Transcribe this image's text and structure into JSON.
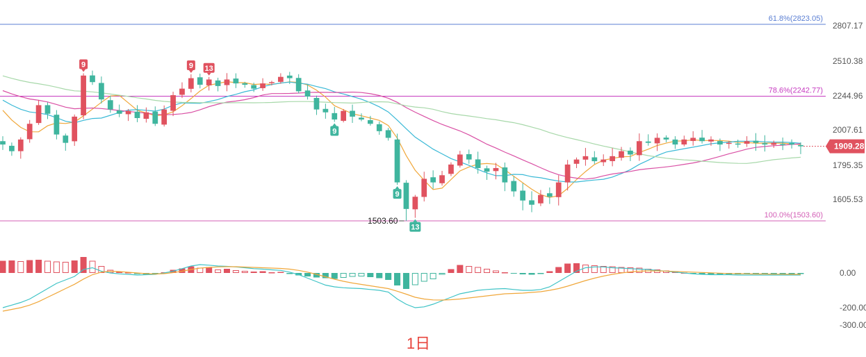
{
  "chart_data": {
    "type": "candlestick",
    "period_label": "1日",
    "colors": {
      "up": "#e0525f",
      "down": "#3fb59e",
      "ma_yellow": "#f0a73a",
      "ma_pink": "#d94fa4",
      "ma_blue": "#3ab9d6",
      "ma_green": "#a7d8a9",
      "fib_618": "#5b7fd3",
      "fib_786": "#c63bc0",
      "fib_100": "#d35fb6",
      "dif": "#3ec3c6",
      "dea": "#f0a73a"
    },
    "price_axis": {
      "ticks": [
        2807.17,
        2510.38,
        2244.96,
        2007.61,
        1795.35,
        1605.53
      ],
      "tick_labels": [
        "2807.17",
        "2510.38",
        "2244.96",
        "2007.61",
        "1795.35",
        "1605.53"
      ]
    },
    "fib_levels": [
      {
        "label": "61.8%(2823.05)",
        "value": 2823.05
      },
      {
        "label": "78.6%(2242.77)",
        "value": 2242.77
      },
      {
        "label": "100.0%(1503.60)",
        "value": 1503.6
      }
    ],
    "current_price": {
      "label": "1909.28",
      "value": 1909.28
    },
    "low_annotation": {
      "label": "1503.60",
      "value": 1503.6
    },
    "td_markers": [
      {
        "label": "9",
        "index": 9,
        "position": "above",
        "color": "#e0525f"
      },
      {
        "label": "9",
        "index": 21,
        "position": "above",
        "color": "#e0525f"
      },
      {
        "label": "13",
        "index": 23,
        "position": "above",
        "color": "#e0525f"
      },
      {
        "label": "9",
        "index": 37,
        "position": "below",
        "color": "#3fb59e"
      },
      {
        "label": "9",
        "index": 44,
        "position": "below",
        "color": "#3fb59e"
      },
      {
        "label": "13",
        "index": 46,
        "position": "below",
        "color": "#3fb59e"
      }
    ],
    "macd_axis": {
      "ticks": [
        0,
        -200,
        -300
      ],
      "tick_labels": [
        "0.00",
        "-200.00",
        "-300.00"
      ]
    },
    "closes": [
      1920,
      1880,
      1950,
      2050,
      2180,
      2120,
      1980,
      1930,
      2100,
      2400,
      2350,
      2220,
      2150,
      2120,
      2140,
      2090,
      2130,
      2050,
      2150,
      2250,
      2300,
      2380,
      2330,
      2370,
      2320,
      2370,
      2340,
      2330,
      2300,
      2340,
      2350,
      2390,
      2380,
      2280,
      2240,
      2150,
      2130,
      2080,
      2140,
      2100,
      2080,
      2050,
      2000,
      1960,
      1700,
      1560,
      1620,
      1720,
      1700,
      1740,
      1800,
      1860,
      1830,
      1780,
      1760,
      1780,
      1700,
      1650,
      1600,
      1580,
      1630,
      1620,
      1700,
      1800,
      1830,
      1850,
      1820,
      1830,
      1850,
      1880,
      1860,
      1940,
      1930,
      1960,
      1950,
      1920,
      1950,
      1960,
      1940,
      1950,
      1920,
      1930,
      1920,
      1940,
      1930,
      1920,
      1930,
      1920,
      1920,
      1909.28
    ],
    "macd_hist": [
      70,
      72,
      68,
      74,
      76,
      70,
      66,
      64,
      72,
      92,
      70,
      40,
      18,
      8,
      4,
      -6,
      -8,
      -6,
      4,
      18,
      26,
      38,
      30,
      34,
      20,
      24,
      16,
      12,
      8,
      10,
      4,
      6,
      -4,
      -14,
      -20,
      -26,
      -30,
      -34,
      -28,
      -22,
      -20,
      -24,
      -30,
      -40,
      -72,
      -92,
      -70,
      -50,
      -36,
      -10,
      22,
      46,
      40,
      34,
      24,
      14,
      4,
      -4,
      -8,
      -10,
      -4,
      10,
      34,
      54,
      56,
      48,
      44,
      40,
      38,
      34,
      32,
      30,
      24,
      20,
      14,
      6,
      2,
      -4,
      -6,
      -8,
      -10,
      -8,
      -8,
      -6,
      -6,
      -6,
      -6,
      -6,
      -6,
      -4
    ],
    "macd_dif": [
      -200,
      -185,
      -170,
      -150,
      -120,
      -90,
      -60,
      -40,
      -20,
      20,
      30,
      10,
      0,
      -5,
      -8,
      -12,
      -10,
      -8,
      0,
      10,
      25,
      40,
      48,
      45,
      40,
      38,
      35,
      30,
      25,
      22,
      18,
      15,
      5,
      -10,
      -30,
      -50,
      -70,
      -80,
      -85,
      -88,
      -90,
      -95,
      -100,
      -110,
      -150,
      -180,
      -200,
      -195,
      -180,
      -160,
      -140,
      -120,
      -110,
      -100,
      -95,
      -92,
      -90,
      -95,
      -100,
      -100,
      -95,
      -80,
      -50,
      -20,
      10,
      30,
      35,
      35,
      30,
      28,
      25,
      22,
      20,
      15,
      10,
      5,
      0,
      -5,
      -8,
      -10,
      -10,
      -10,
      -12,
      -12,
      -12,
      -12,
      -12,
      -12,
      -12,
      -12
    ],
    "macd_dea": [
      -220,
      -210,
      -200,
      -185,
      -165,
      -140,
      -115,
      -90,
      -65,
      -35,
      -10,
      5,
      10,
      8,
      4,
      0,
      -4,
      -6,
      -4,
      2,
      10,
      20,
      28,
      32,
      35,
      36,
      36,
      34,
      32,
      30,
      28,
      26,
      22,
      15,
      5,
      -8,
      -22,
      -36,
      -48,
      -58,
      -66,
      -74,
      -82,
      -90,
      -105,
      -122,
      -140,
      -150,
      -155,
      -156,
      -154,
      -150,
      -144,
      -138,
      -132,
      -126,
      -120,
      -118,
      -116,
      -112,
      -108,
      -100,
      -90,
      -76,
      -60,
      -44,
      -30,
      -18,
      -8,
      0,
      6,
      10,
      12,
      12,
      11,
      9,
      7,
      5,
      3,
      1,
      -1,
      -3,
      -4,
      -5,
      -6,
      -6,
      -7,
      -7,
      -8,
      -8
    ]
  }
}
